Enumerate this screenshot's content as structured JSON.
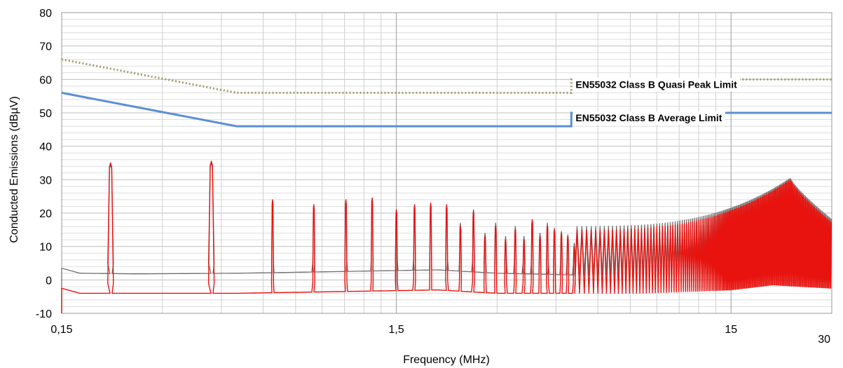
{
  "chart_data": {
    "type": "line",
    "title": "",
    "xlabel": "Frequency (MHz)",
    "ylabel": "Conducted Emissions (dBµV)",
    "x_scale": "log",
    "xlim": [
      0.15,
      30
    ],
    "ylim": [
      -10,
      80
    ],
    "x_ticks": [
      {
        "value": 0.15,
        "label": "0,15"
      },
      {
        "value": 1.5,
        "label": "1,5"
      },
      {
        "value": 15,
        "label": "15"
      },
      {
        "value": 30,
        "label": "30"
      }
    ],
    "y_ticks": [
      {
        "value": -10,
        "label": "-10"
      },
      {
        "value": 0,
        "label": "0"
      },
      {
        "value": 10,
        "label": "10"
      },
      {
        "value": 20,
        "label": "20"
      },
      {
        "value": 30,
        "label": "30"
      },
      {
        "value": 40,
        "label": "40"
      },
      {
        "value": 50,
        "label": "50"
      },
      {
        "value": 60,
        "label": "60"
      },
      {
        "value": 70,
        "label": "70"
      },
      {
        "value": 80,
        "label": "80"
      }
    ],
    "grid": true,
    "series": [
      {
        "name": "",
        "role": "quasi-peak-limit",
        "color": "#a09a6a",
        "style": "dotted",
        "x": [
          0.15,
          0.5,
          5,
          5,
          30
        ],
        "y": [
          66,
          56,
          56,
          60,
          60
        ]
      },
      {
        "name": "",
        "role": "average-limit",
        "color": "#5b8fd4",
        "style": "solid",
        "x": [
          0.15,
          0.5,
          5,
          5,
          30
        ],
        "y": [
          56,
          46,
          46,
          50,
          50
        ]
      },
      {
        "name": "",
        "role": "peak-measurement",
        "color": "#707070",
        "baseline": [
          [
            0.15,
            3.5
          ],
          [
            0.17,
            2
          ],
          [
            0.25,
            1.8
          ],
          [
            0.5,
            2
          ],
          [
            1.0,
            2.5
          ],
          [
            2.0,
            3
          ],
          [
            3.0,
            2
          ],
          [
            5.0,
            1.5
          ],
          [
            8.0,
            1.5
          ],
          [
            15.0,
            2
          ],
          [
            20.0,
            1
          ],
          [
            30.0,
            3
          ]
        ],
        "peaks": [
          [
            0.21,
            34.5
          ],
          [
            0.42,
            35
          ],
          [
            0.64,
            23.5
          ],
          [
            0.85,
            22
          ],
          [
            1.06,
            23.5
          ],
          [
            1.27,
            24
          ],
          [
            1.5,
            20.5
          ],
          [
            1.7,
            22
          ],
          [
            1.9,
            22.5
          ],
          [
            2.12,
            22
          ],
          [
            2.33,
            17
          ],
          [
            2.55,
            21
          ],
          [
            2.76,
            14
          ],
          [
            2.97,
            17
          ],
          [
            3.18,
            13
          ],
          [
            3.4,
            16
          ],
          [
            3.61,
            13
          ],
          [
            3.82,
            17.5
          ],
          [
            4.03,
            14
          ],
          [
            4.24,
            17
          ],
          [
            4.45,
            15.5
          ],
          [
            4.67,
            14.5
          ],
          [
            4.88,
            13.5
          ],
          [
            5.1,
            11
          ]
        ],
        "hump": {
          "start": 5.1,
          "center": 22.5,
          "end": 30,
          "edge_max": 16,
          "center_max": 30.5
        }
      },
      {
        "name": "",
        "role": "average-measurement",
        "color": "#e8130f",
        "baseline": [
          [
            0.15,
            -2.5
          ],
          [
            0.17,
            -4
          ],
          [
            0.25,
            -4
          ],
          [
            0.5,
            -4
          ],
          [
            1.0,
            -3.5
          ],
          [
            2.0,
            -3
          ],
          [
            3.0,
            -4
          ],
          [
            5.0,
            -4
          ],
          [
            8.0,
            -4
          ],
          [
            15.0,
            -3
          ],
          [
            20.0,
            -1.5
          ],
          [
            30.0,
            -2.5
          ]
        ],
        "peaks": [
          [
            0.21,
            35
          ],
          [
            0.42,
            35.5
          ],
          [
            0.64,
            24
          ],
          [
            0.85,
            22.5
          ],
          [
            1.06,
            24
          ],
          [
            1.27,
            24.5
          ],
          [
            1.5,
            21
          ],
          [
            1.7,
            22.5
          ],
          [
            1.9,
            23
          ],
          [
            2.12,
            22.5
          ],
          [
            2.33,
            16
          ],
          [
            2.55,
            20.5
          ],
          [
            2.76,
            13
          ],
          [
            2.97,
            16
          ],
          [
            3.18,
            12
          ],
          [
            3.4,
            15
          ],
          [
            3.61,
            12
          ],
          [
            3.82,
            18
          ],
          [
            4.03,
            13
          ],
          [
            4.24,
            16
          ],
          [
            4.45,
            15
          ],
          [
            4.67,
            14
          ],
          [
            4.88,
            13
          ],
          [
            5.1,
            10
          ]
        ],
        "hump": {
          "start": 5.1,
          "center": 22.5,
          "end": 30,
          "edge_max": 15,
          "center_max": 30
        }
      }
    ],
    "annotations": [
      {
        "text": "EN55032 Class B Quasi Peak Limit",
        "x": 5.05,
        "y": 57.5
      },
      {
        "text": "EN55032 Class B Average Limit",
        "x": 5.05,
        "y": 47.5
      }
    ]
  }
}
